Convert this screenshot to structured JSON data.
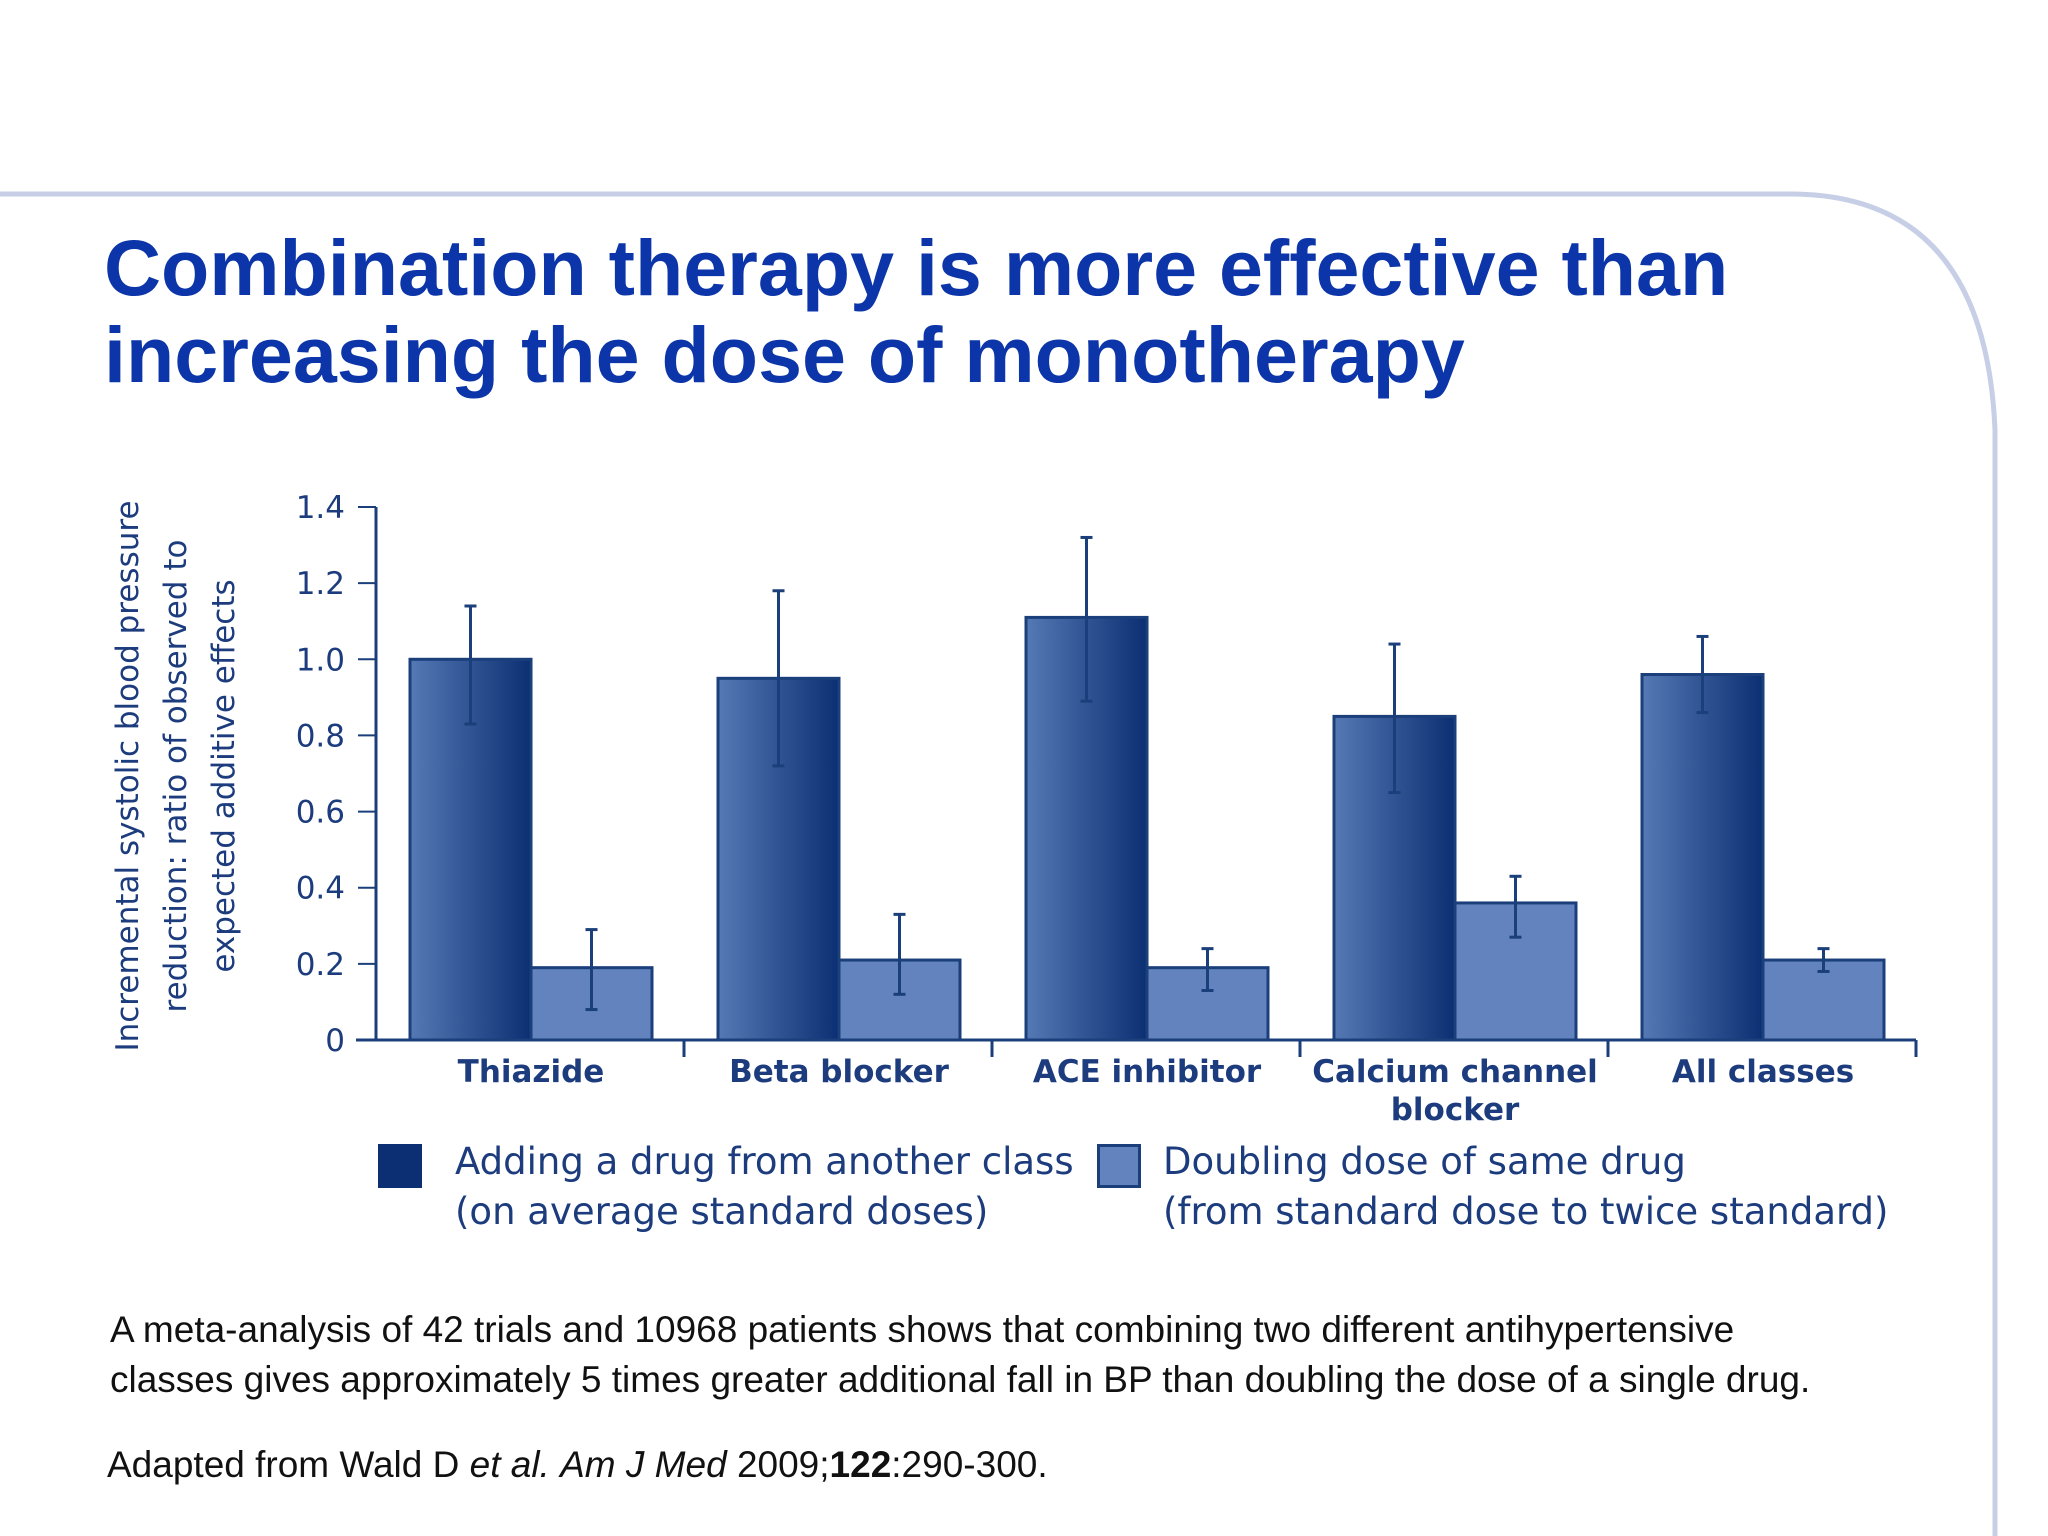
{
  "slide": {
    "title_lines": [
      "Combination therapy is more effective than",
      "increasing the dose of monotherapy"
    ],
    "caption_lines": [
      "A meta-analysis of 42 trials and 10968 patients shows that combining two different antihypertensive",
      "classes gives approximately 5 times greater additional fall in BP than doubling the dose of a single drug."
    ],
    "reference": {
      "prefix": "Adapted from Wald D ",
      "italic1": "et al.",
      "space": " ",
      "italic2": "Am J Med",
      "year": " 2009;",
      "volume": "122",
      "pages": ":290-300."
    },
    "legend": [
      {
        "line1": "Adding a drug from another class",
        "line2": "(on average standard doses)"
      },
      {
        "line1": "Doubling dose of same drug",
        "line2": "(from standard dose to twice standard)"
      }
    ]
  },
  "colors": {
    "title": "#0b35a8",
    "dark_series": "#0b2f72",
    "dark_series_light": "#5579b4",
    "light_series": "#6283bd",
    "axis": "#1b3f7a",
    "text": "#1c3c7d",
    "frame": "#c6cfe6"
  },
  "chart_data": {
    "type": "bar",
    "title": "",
    "xlabel": "",
    "ylabel_lines": [
      "Incremental systolic blood pressure",
      "reduction: ratio of observed to",
      "expected additive effects"
    ],
    "ylim": [
      0,
      1.4
    ],
    "yticks": [
      "0",
      "0.2",
      "0.4",
      "0.6",
      "0.8",
      "1.0",
      "1.2",
      "1.4"
    ],
    "ytick_values": [
      0,
      0.2,
      0.4,
      0.6,
      0.8,
      1.0,
      1.2,
      1.4
    ],
    "categories": [
      [
        "Thiazide"
      ],
      [
        "Beta blocker"
      ],
      [
        "ACE inhibitor"
      ],
      [
        "Calcium channel",
        "blocker"
      ],
      [
        "All classes"
      ]
    ],
    "series": [
      {
        "name": "Adding a drug from another class (on average standard doses)",
        "values": [
          1.0,
          0.95,
          1.11,
          0.85,
          0.96
        ],
        "err_low": [
          0.83,
          0.72,
          0.89,
          0.65,
          0.86
        ],
        "err_high": [
          1.14,
          1.18,
          1.32,
          1.04,
          1.06
        ]
      },
      {
        "name": "Doubling dose of same drug (from standard dose to twice standard)",
        "values": [
          0.19,
          0.21,
          0.19,
          0.36,
          0.21
        ],
        "err_low": [
          0.08,
          0.12,
          0.13,
          0.27,
          0.18
        ],
        "err_high": [
          0.29,
          0.33,
          0.24,
          0.43,
          0.24
        ]
      }
    ],
    "grid": false,
    "legend_position": "bottom"
  }
}
